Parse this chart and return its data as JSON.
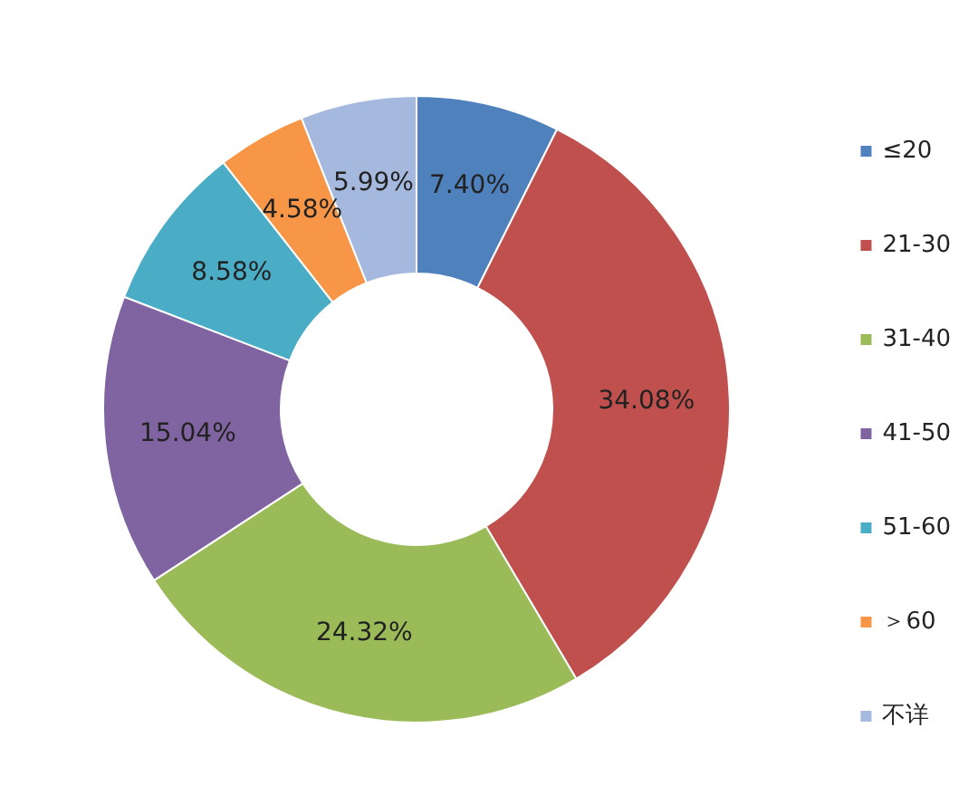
{
  "chart_data": {
    "type": "donut",
    "categories": [
      "≤20",
      "21-30",
      "31-40",
      "41-50",
      "51-60",
      "＞60",
      "不详"
    ],
    "values": [
      7.4,
      34.08,
      24.32,
      15.04,
      8.58,
      4.58,
      5.99
    ],
    "value_labels": [
      "7.40%",
      "34.08%",
      "24.32%",
      "15.04%",
      "8.58%",
      "4.58%",
      "5.99%"
    ],
    "colors": [
      "#4f81bd",
      "#c0504d",
      "#9bbb59",
      "#8064a2",
      "#4bacc6",
      "#f79646",
      "#a5b8de"
    ],
    "legend": "right"
  }
}
